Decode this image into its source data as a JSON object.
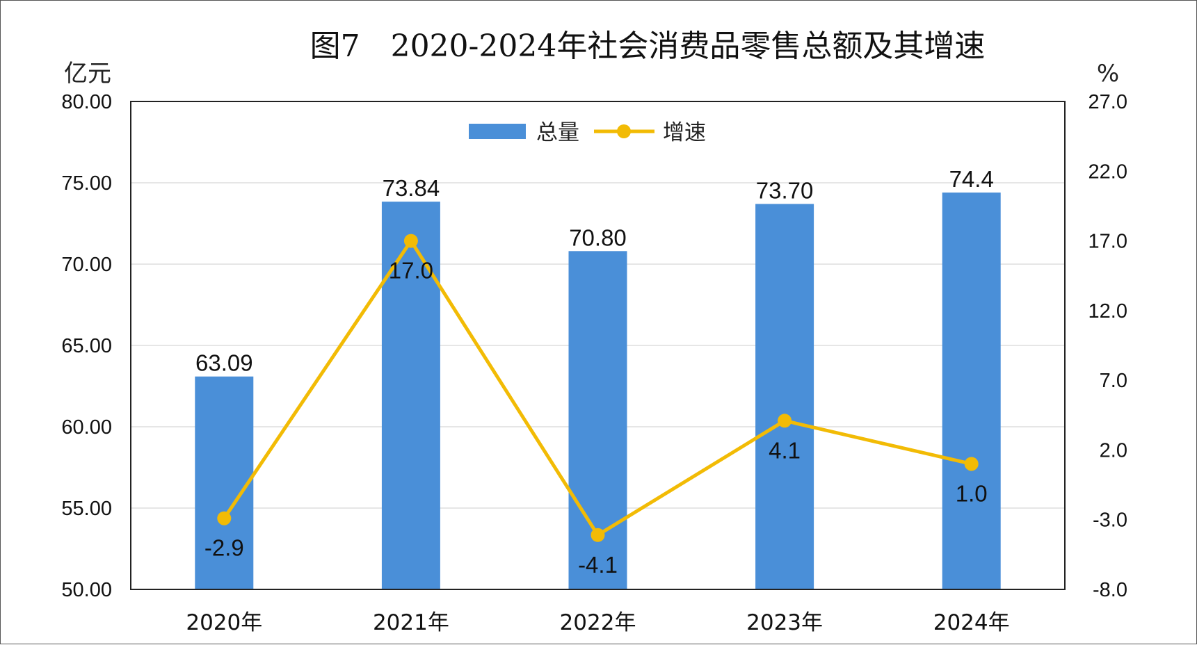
{
  "chart_data": {
    "type": "bar",
    "title": "图7　2020-2024年社会消费品零售总额及其增速",
    "categories": [
      "2020年",
      "2021年",
      "2022年",
      "2023年",
      "2024年"
    ],
    "left_axis": {
      "unit": "亿元",
      "ylim": [
        50,
        80
      ],
      "ticks": [
        "50.00",
        "55.00",
        "60.00",
        "65.00",
        "70.00",
        "75.00",
        "80.00"
      ]
    },
    "right_axis": {
      "unit": "%",
      "ylim": [
        -8,
        27
      ],
      "ticks": [
        "-8.0",
        "-3.0",
        "2.0",
        "7.0",
        "12.0",
        "17.0",
        "22.0",
        "27.0"
      ]
    },
    "series": [
      {
        "name": "总量",
        "type": "bar",
        "axis": "left",
        "values": [
          63.09,
          73.84,
          70.8,
          73.7,
          74.4
        ],
        "labels": [
          "63.09",
          "73.84",
          "70.80",
          "73.70",
          "74.4"
        ],
        "color": "#4a8fd8"
      },
      {
        "name": "增速",
        "type": "line",
        "axis": "right",
        "values": [
          -2.9,
          17.0,
          -4.1,
          4.1,
          1.0
        ],
        "labels": [
          "-2.9",
          "17.0",
          "-4.1",
          "4.1",
          "1.0"
        ],
        "color": "#f2bb05"
      }
    ],
    "legend_position": "top-center",
    "grid": true
  }
}
